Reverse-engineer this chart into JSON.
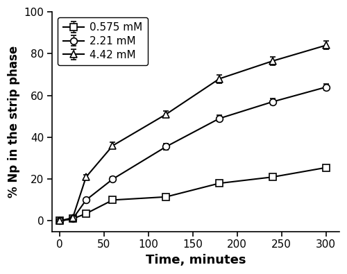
{
  "series": [
    {
      "label": "0.575 mM",
      "marker": "s",
      "x": [
        0,
        15,
        30,
        60,
        120,
        180,
        240,
        300
      ],
      "y": [
        0,
        1.0,
        3.5,
        10.0,
        11.5,
        18.0,
        21.0,
        25.5
      ],
      "yerr": [
        0.3,
        0.5,
        0.5,
        0.8,
        0.8,
        1.0,
        1.0,
        1.2
      ]
    },
    {
      "label": "2.21 mM",
      "marker": "o",
      "x": [
        0,
        15,
        30,
        60,
        120,
        180,
        240,
        300
      ],
      "y": [
        0,
        1.0,
        10.0,
        20.0,
        35.5,
        49.0,
        57.0,
        64.0
      ],
      "yerr": [
        0.3,
        0.5,
        0.8,
        1.0,
        1.5,
        1.5,
        1.5,
        1.5
      ]
    },
    {
      "label": "4.42 mM",
      "marker": "^",
      "x": [
        0,
        15,
        30,
        60,
        120,
        180,
        240,
        300
      ],
      "y": [
        0,
        1.5,
        21.0,
        36.0,
        51.0,
        68.0,
        76.5,
        84.0
      ],
      "yerr": [
        0.3,
        0.5,
        1.0,
        1.5,
        1.5,
        2.0,
        2.0,
        2.0
      ]
    }
  ],
  "xlabel": "Time, minutes",
  "ylabel": "% Np in the strip phase",
  "xlim": [
    -8,
    315
  ],
  "ylim": [
    -5,
    100
  ],
  "yticks": [
    0,
    20,
    40,
    60,
    80,
    100
  ],
  "xticks": [
    0,
    50,
    100,
    150,
    200,
    250,
    300
  ],
  "line_color": "#000000",
  "marker_facecolor": "#ffffff",
  "marker_size": 7,
  "linewidth": 1.5,
  "capsize": 3,
  "elinewidth": 1.0,
  "xlabel_fontsize": 13,
  "ylabel_fontsize": 12,
  "tick_labelsize": 11,
  "legend_fontsize": 11
}
